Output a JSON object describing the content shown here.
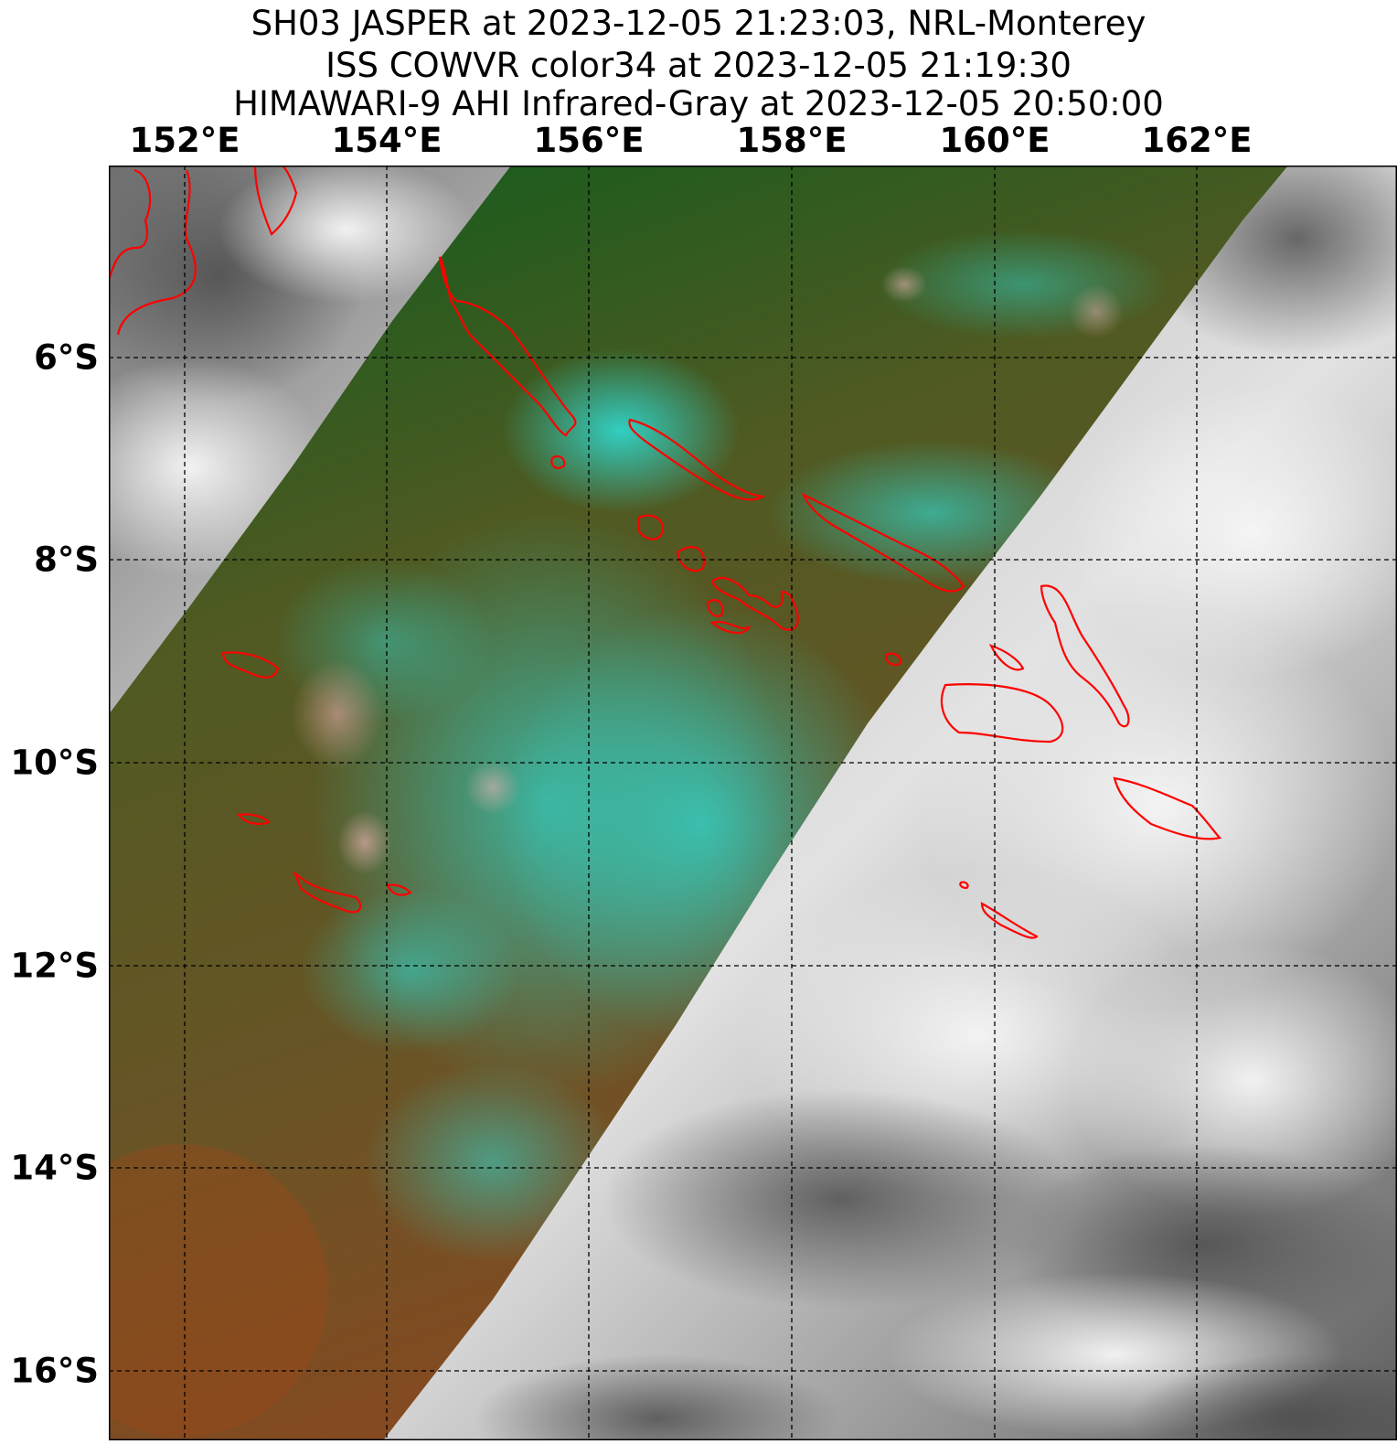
{
  "title": {
    "line1": "SH03 JASPER at 2023-12-05 21:23:03, NRL-Monterey",
    "line2": "ISS COWVR color34 at 2023-12-05 21:19:30",
    "line3": "HIMAWARI-9 AHI Infrared-Gray at 2023-12-05 20:50:00"
  },
  "lon_labels": [
    "152°E",
    "154°E",
    "156°E",
    "158°E",
    "160°E",
    "162°E"
  ],
  "lat_labels": [
    "6°S",
    "8°S",
    "10°S",
    "12°S",
    "14°S",
    "16°S"
  ],
  "extent": {
    "lon_min": 151.25,
    "lon_max": 163.95,
    "lat_max": -4.1,
    "lat_min": -16.7
  },
  "colors": {
    "coastline": "#ff0000",
    "gridline": "#000000",
    "swath_green": "#0b5a1a",
    "swath_brown": "#7a4e26",
    "swath_cyan": "#22d3cc",
    "swath_pink": "#e8a0a0",
    "ir_gray_light": "#e4e4e4",
    "ir_gray_dark": "#5a5a5a"
  }
}
